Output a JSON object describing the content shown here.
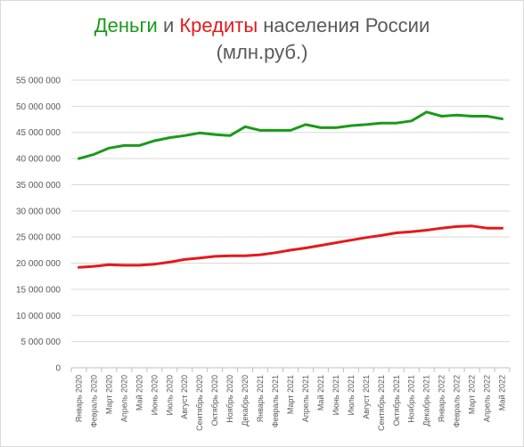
{
  "title": {
    "money": "Деньги",
    "and": " и ",
    "credit": "Кредиты",
    "rest": " населения России",
    "subtitle": "(млн.руб.)"
  },
  "chart_data": {
    "type": "line",
    "categories": [
      "Январь 2020",
      "Февраль 2020",
      "Март 2020",
      "Апрель 2020",
      "Май 2020",
      "Июнь 2020",
      "Июль 2020",
      "Август 2020",
      "Сентябрь 2020",
      "Октябрь 2020",
      "Ноябрь 2020",
      "Декабрь 2020",
      "Январь 2021",
      "Февраль 2021",
      "Март 2021",
      "Апрель 2021",
      "Май 2021",
      "Июнь 2021",
      "Июль 2021",
      "Август 2021",
      "Сентябрь 2021",
      "Октябрь 2021",
      "Ноябрь 2021",
      "Декабрь 2021",
      "Январь 2022",
      "Февраль 2022",
      "Март 2022",
      "Апрель 2022",
      "Май 2022"
    ],
    "series": [
      {
        "name": "Деньги",
        "color": "#1a9a1a",
        "values": [
          40000000,
          40800000,
          42000000,
          42500000,
          42500000,
          43400000,
          44000000,
          44400000,
          44900000,
          44600000,
          44400000,
          46100000,
          45400000,
          45400000,
          45400000,
          46500000,
          45900000,
          45900000,
          46300000,
          46500000,
          46800000,
          46800000,
          47200000,
          48900000,
          48100000,
          48300000,
          48100000,
          48100000,
          47600000
        ]
      },
      {
        "name": "Кредиты",
        "color": "#e31a1c",
        "values": [
          19200000,
          19400000,
          19700000,
          19600000,
          19600000,
          19800000,
          20200000,
          20700000,
          21000000,
          21300000,
          21400000,
          21400000,
          21600000,
          22000000,
          22500000,
          22900000,
          23400000,
          23900000,
          24400000,
          24900000,
          25300000,
          25800000,
          26000000,
          26300000,
          26700000,
          27000000,
          27100000,
          26700000,
          26700000
        ]
      }
    ],
    "ylim": [
      0,
      55000000
    ],
    "ystep": 5000000,
    "yticks": [
      "0",
      "5 000 000",
      "10 000 000",
      "15 000 000",
      "20 000 000",
      "25 000 000",
      "30 000 000",
      "35 000 000",
      "40 000 000",
      "45 000 000",
      "50 000 000",
      "55 000 000"
    ],
    "grid": true,
    "legend": "none",
    "xlabel": "",
    "ylabel": ""
  }
}
